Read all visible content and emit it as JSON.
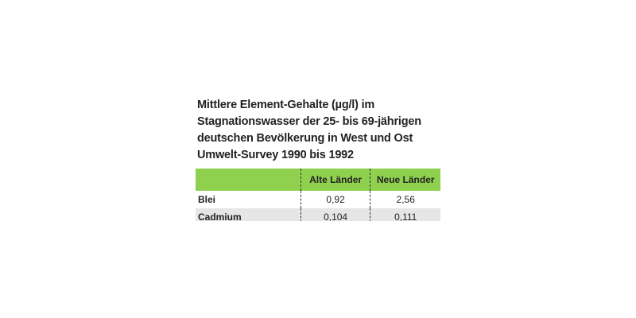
{
  "title_lines": [
    "Mittlere Element-Gehalte (µg/l) im",
    "Stagnationswasser der 25- bis 69-jährigen",
    "deutschen Bevölkerung in West und Ost",
    "Umwelt-Survey 1990 bis 1992"
  ],
  "table": {
    "header": [
      "",
      "Alte Länder",
      "Neue Länder"
    ],
    "rows": [
      [
        "Blei",
        "0,92",
        "2,56"
      ],
      [
        "Cadmium",
        "0,104",
        "0,111"
      ]
    ]
  }
}
